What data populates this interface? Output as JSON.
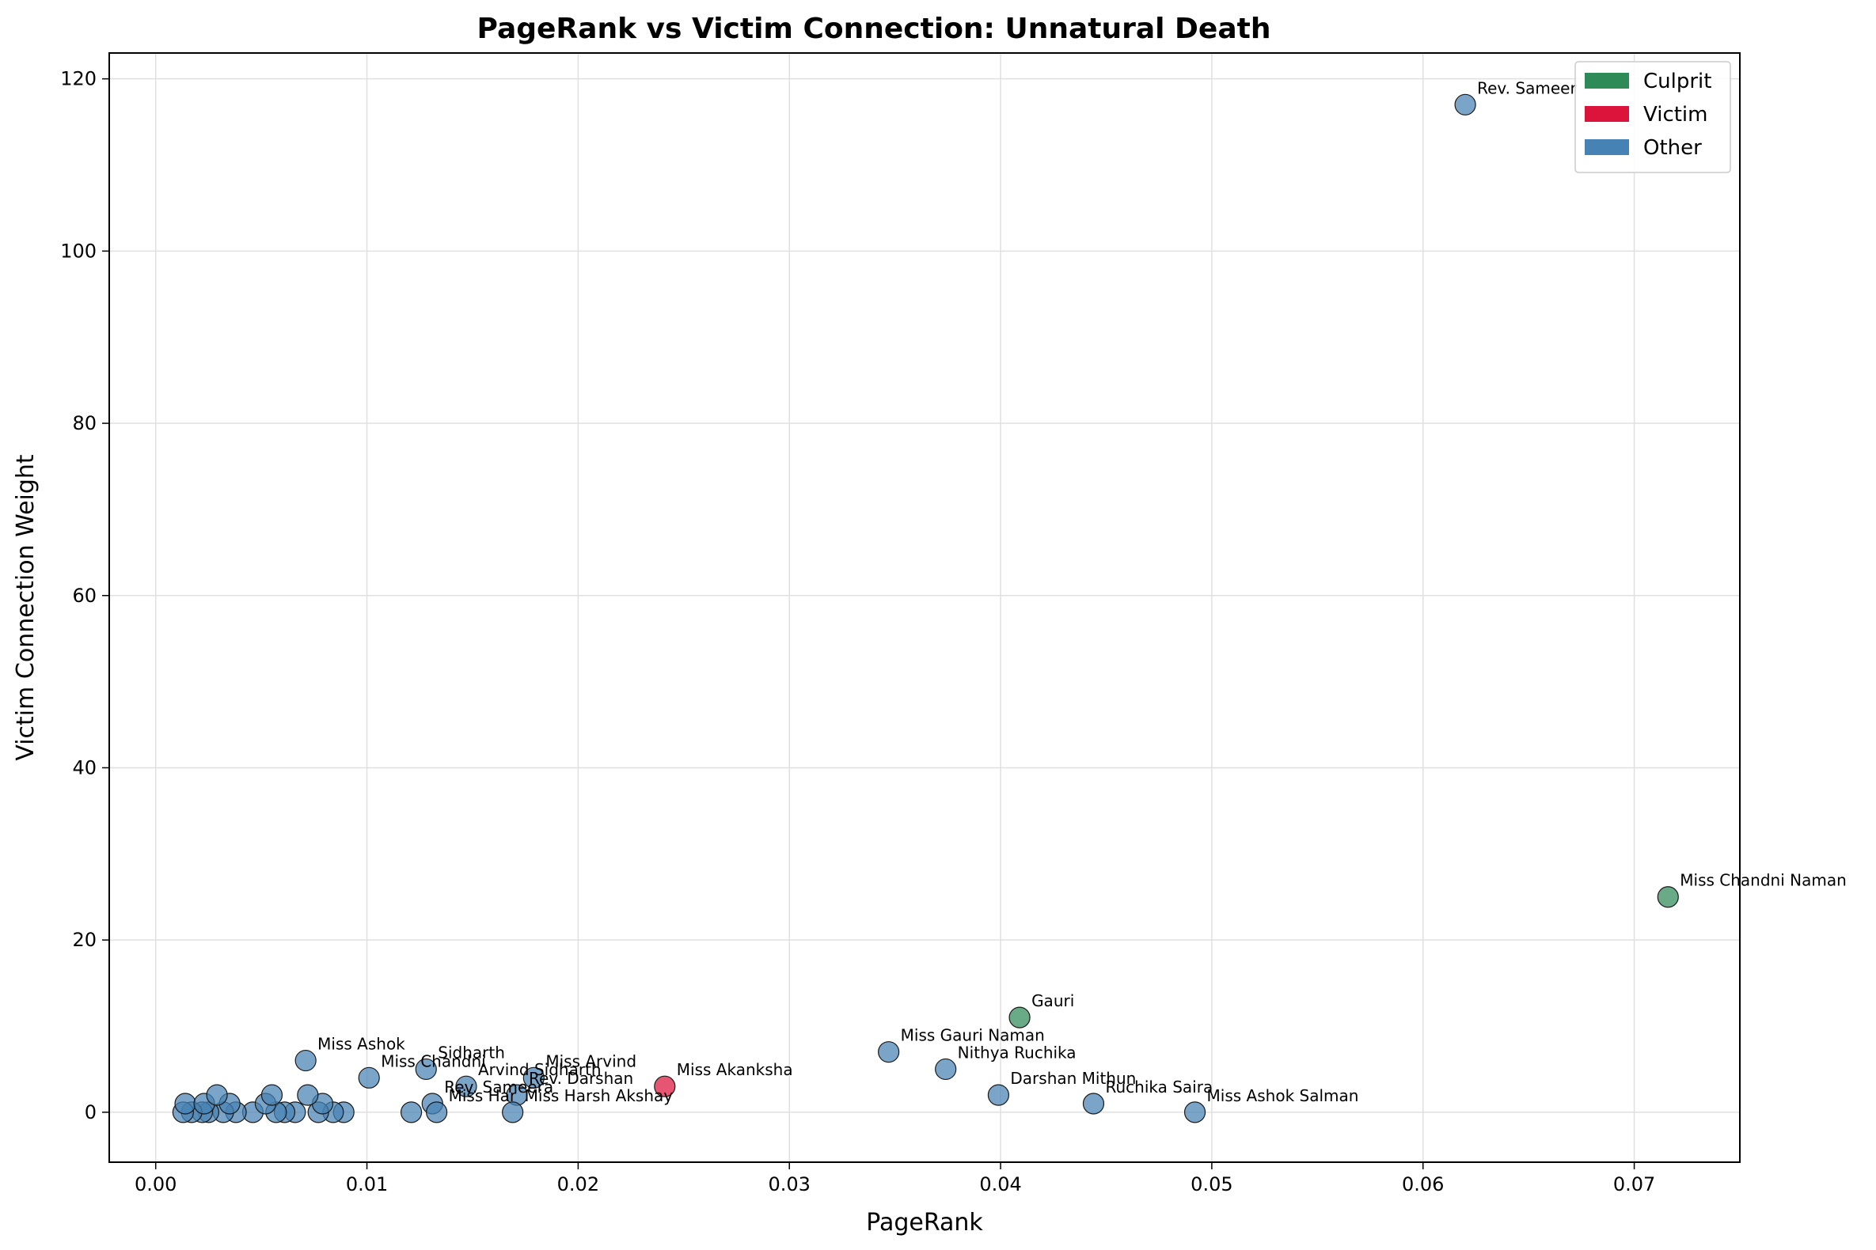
{
  "chart_data": {
    "type": "scatter",
    "title": "PageRank vs Victim Connection: Unnatural Death",
    "xlabel": "PageRank",
    "ylabel": "Victim Connection Weight",
    "xlim": [
      -0.0022,
      0.075
    ],
    "ylim": [
      -5.8,
      123
    ],
    "xticks": [
      0.0,
      0.01,
      0.02,
      0.03,
      0.04,
      0.05,
      0.06,
      0.07
    ],
    "xtick_labels": [
      "0.00",
      "0.01",
      "0.02",
      "0.03",
      "0.04",
      "0.05",
      "0.06",
      "0.07"
    ],
    "yticks": [
      0,
      20,
      40,
      60,
      80,
      100,
      120
    ],
    "ytick_labels": [
      "0",
      "20",
      "40",
      "60",
      "80",
      "100",
      "120"
    ],
    "grid": true,
    "legend_position": "top-right",
    "colors": {
      "Culprit": "#2e8b57",
      "Victim": "#dc143c",
      "Other": "#4682b4"
    },
    "legend": [
      {
        "label": "Culprit",
        "color": "#2e8b57"
      },
      {
        "label": "Victim",
        "color": "#dc143c"
      },
      {
        "label": "Other",
        "color": "#4682b4"
      }
    ],
    "points": [
      {
        "x": 0.062,
        "y": 117,
        "label": "Rev. Sameer",
        "category": "Other"
      },
      {
        "x": 0.0716,
        "y": 25,
        "label": "Miss Chandni Naman",
        "category": "Culprit"
      },
      {
        "x": 0.0409,
        "y": 11,
        "label": "Gauri",
        "category": "Culprit"
      },
      {
        "x": 0.0347,
        "y": 7,
        "label": "Miss Gauri Naman",
        "category": "Other"
      },
      {
        "x": 0.0374,
        "y": 5,
        "label": "Nithya Ruchika",
        "category": "Other"
      },
      {
        "x": 0.0399,
        "y": 2,
        "label": "Darshan Mithun",
        "category": "Other"
      },
      {
        "x": 0.0444,
        "y": 1,
        "label": "Ruchika Saira",
        "category": "Other"
      },
      {
        "x": 0.0492,
        "y": 0,
        "label": "Miss Ashok Salman",
        "category": "Other"
      },
      {
        "x": 0.0241,
        "y": 3,
        "label": "Miss Akanksha",
        "category": "Victim"
      },
      {
        "x": 0.0071,
        "y": 6,
        "label": "Miss Ashok",
        "category": "Other"
      },
      {
        "x": 0.0128,
        "y": 5,
        "label": "Sidharth",
        "category": "Other"
      },
      {
        "x": 0.0101,
        "y": 4,
        "label": "Miss Chandni",
        "category": "Other"
      },
      {
        "x": 0.0179,
        "y": 4,
        "label": "Miss Arvind",
        "category": "Other"
      },
      {
        "x": 0.0147,
        "y": 3,
        "label": "Arvind Sidharth",
        "category": "Other"
      },
      {
        "x": 0.0171,
        "y": 2,
        "label": "Rev. Darshan",
        "category": "Other"
      },
      {
        "x": 0.0131,
        "y": 1,
        "label": "Rev. Sameera",
        "category": "Other"
      },
      {
        "x": 0.0169,
        "y": 0,
        "label": "Miss Harsh Akshay",
        "category": "Other"
      },
      {
        "x": 0.0133,
        "y": 0,
        "label": "Miss Har",
        "category": "Other"
      },
      {
        "x": 0.0121,
        "y": 0,
        "label": "",
        "category": "Other"
      },
      {
        "x": 0.0089,
        "y": 0,
        "label": "",
        "category": "Other"
      },
      {
        "x": 0.0084,
        "y": 0,
        "label": "",
        "category": "Other"
      },
      {
        "x": 0.0077,
        "y": 0,
        "label": "",
        "category": "Other"
      },
      {
        "x": 0.0066,
        "y": 0,
        "label": "",
        "category": "Other"
      },
      {
        "x": 0.0061,
        "y": 0,
        "label": "",
        "category": "Other"
      },
      {
        "x": 0.0057,
        "y": 0,
        "label": "",
        "category": "Other"
      },
      {
        "x": 0.0046,
        "y": 0,
        "label": "",
        "category": "Other"
      },
      {
        "x": 0.0038,
        "y": 0,
        "label": "",
        "category": "Other"
      },
      {
        "x": 0.0032,
        "y": 0,
        "label": "",
        "category": "Other"
      },
      {
        "x": 0.0025,
        "y": 0,
        "label": "",
        "category": "Other"
      },
      {
        "x": 0.0022,
        "y": 0,
        "label": "",
        "category": "Other"
      },
      {
        "x": 0.0017,
        "y": 0,
        "label": "",
        "category": "Other"
      },
      {
        "x": 0.0013,
        "y": 0,
        "label": "",
        "category": "Other"
      },
      {
        "x": 0.0014,
        "y": 1,
        "label": "",
        "category": "Other"
      },
      {
        "x": 0.0023,
        "y": 1,
        "label": "",
        "category": "Other"
      },
      {
        "x": 0.0035,
        "y": 1,
        "label": "",
        "category": "Other"
      },
      {
        "x": 0.0052,
        "y": 1,
        "label": "",
        "category": "Other"
      },
      {
        "x": 0.0079,
        "y": 1,
        "label": "",
        "category": "Other"
      },
      {
        "x": 0.0029,
        "y": 2,
        "label": "",
        "category": "Other"
      },
      {
        "x": 0.0055,
        "y": 2,
        "label": "",
        "category": "Other"
      },
      {
        "x": 0.0072,
        "y": 2,
        "label": "",
        "category": "Other"
      }
    ]
  }
}
